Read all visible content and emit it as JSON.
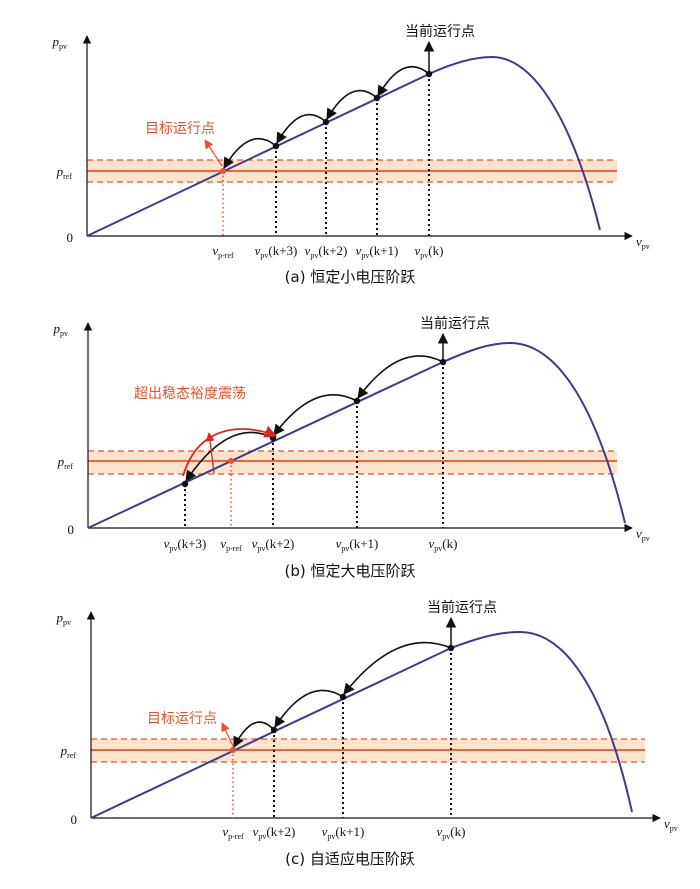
{
  "colors": {
    "curve": "#3b3b8f",
    "ref": "#e8532b",
    "band": "#fde3cc",
    "marker": "#111111",
    "oscillation_arrow": "#d42a1e"
  },
  "axis": {
    "y_main": "p",
    "y_sub": "pv",
    "x_main": "v",
    "x_sub": "pv",
    "origin": "0",
    "pref_main": "p",
    "pref_sub": "ref",
    "vref_main": "v",
    "vref_sub": "p-ref"
  },
  "current_point_label": "当前运行点",
  "panels": [
    {
      "caption": "(a) 恒定小电压阶跃",
      "note": "目标运行点",
      "labels": [
        {
          "rest": "(k+3)"
        },
        {
          "rest": "(k+2)"
        },
        {
          "rest": "(k+1)"
        },
        {
          "rest": "(k)"
        }
      ]
    },
    {
      "caption": "(b) 恒定大电压阶跃",
      "note": "超出稳态裕度震荡",
      "labels": [
        {
          "rest": "(k+3)"
        },
        {
          "rest": "(k+2)"
        },
        {
          "rest": "(k+1)"
        },
        {
          "rest": "(k)"
        }
      ]
    },
    {
      "caption": "(c) 自适应电压阶跃",
      "note": "目标运行点",
      "labels": [
        {
          "rest": "(k+2)"
        },
        {
          "rest": "(k+1)"
        },
        {
          "rest": "(k)"
        }
      ]
    }
  ]
}
